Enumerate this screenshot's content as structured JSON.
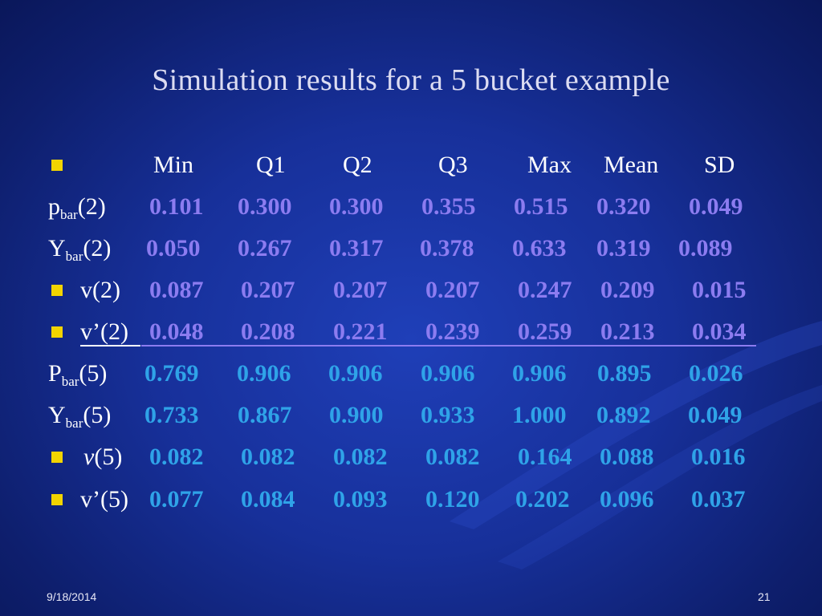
{
  "title": "Simulation results for a 5 bucket example",
  "columns": [
    "Min",
    "Q1",
    "Q2",
    "Q3",
    "Max",
    "Mean",
    "SD"
  ],
  "rows": [
    {
      "label": "p",
      "sub": "bar",
      "arg": "(2)",
      "values": [
        "0.101",
        "0.300",
        "0.300",
        "0.355",
        "0.515",
        "0.320",
        "0.049"
      ],
      "value_color": "#8c7cf0"
    },
    {
      "label": "Y",
      "sub": "bar",
      "arg": "(2)",
      "values": [
        "0.050",
        "0.267",
        "0.317",
        "0.378",
        "0.633",
        "0.319",
        "0.089"
      ],
      "value_color": "#8c7cf0"
    },
    {
      "label": "v(2)",
      "values": [
        "0.087",
        "0.207",
        "0.207",
        "0.207",
        "0.247",
        "0.209",
        "0.015"
      ],
      "value_color": "#8c7cf0"
    },
    {
      "label": "v’(2)",
      "values": [
        "0.048",
        "0.208",
        "0.221",
        "0.239",
        "0.259",
        "0.213",
        "0.034"
      ],
      "value_color": "#8c7cf0",
      "underline": true
    },
    {
      "label": "P",
      "sub": "bar",
      "arg": "(5)",
      "values": [
        "0.769",
        "0.906",
        "0.906",
        "0.906",
        "0.906",
        "0.895",
        "0.026"
      ],
      "value_color": "#2fa3e8"
    },
    {
      "label": "Y",
      "sub": "bar",
      "arg": "(5)",
      "values": [
        "0.733",
        "0.867",
        "0.900",
        "0.933",
        "1.000",
        "0.892",
        "0.049"
      ],
      "value_color": "#2fa3e8"
    },
    {
      "label": "v",
      "arg": "(5)",
      "values": [
        "0.082",
        "0.082",
        "0.082",
        "0.082",
        "0.164",
        "0.088",
        "0.016"
      ],
      "value_color": "#2fa3e8"
    },
    {
      "label": "v’(5)",
      "values": [
        "0.077",
        "0.084",
        "0.093",
        "0.120",
        "0.202",
        "0.096",
        "0.037"
      ],
      "value_color": "#2fa3e8"
    }
  ],
  "footer": {
    "date": "9/18/2014",
    "page": "21"
  },
  "colors": {
    "bullet": "#f2d400",
    "title": "#dcdcf2",
    "background": "#17309a"
  }
}
